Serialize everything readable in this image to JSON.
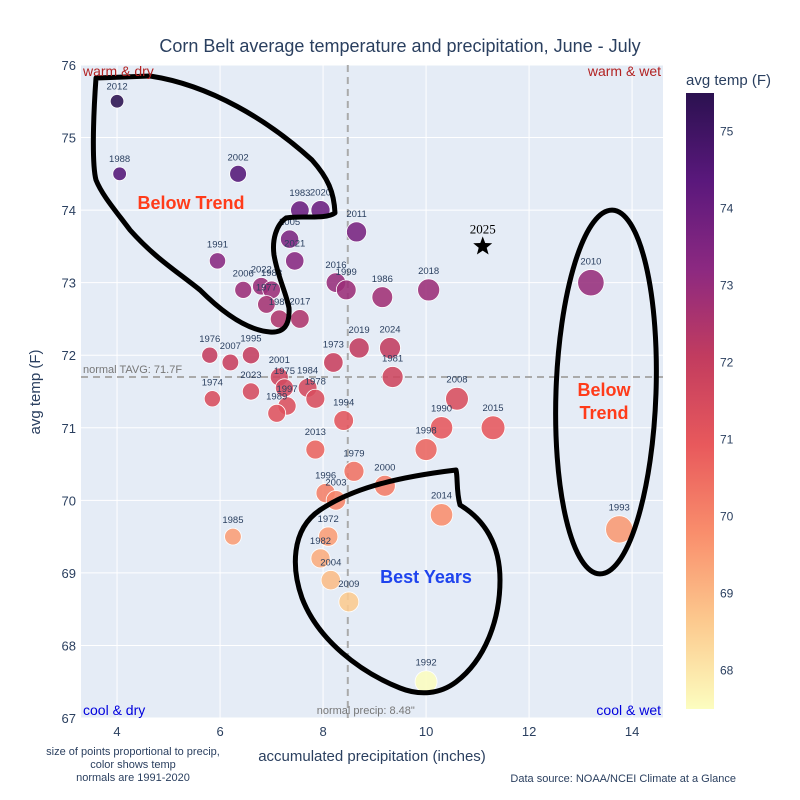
{
  "chart_data": {
    "type": "scatter",
    "title": "Corn Belt average temperature and precipitation, June - July",
    "xlabel": "accumulated precipitation (inches)",
    "ylabel": "avg temp (F)",
    "xlim": [
      3.3,
      14.6
    ],
    "ylim": [
      67,
      76
    ],
    "xticks": [
      4,
      6,
      8,
      10,
      12,
      14
    ],
    "yticks": [
      67,
      68,
      69,
      70,
      71,
      72,
      73,
      74,
      75,
      76
    ],
    "grid": true,
    "colorbar": {
      "title": "avg temp (F)",
      "range": [
        67.5,
        75.5
      ],
      "ticks": [
        68,
        69,
        70,
        71,
        72,
        73,
        74,
        75
      ],
      "colorscale": [
        "#fcfdbf",
        "#fcc98e",
        "#f98e6c",
        "#e8595c",
        "#c23c5f",
        "#8c2981",
        "#5a187c",
        "#2b1150"
      ]
    },
    "points": [
      {
        "year": "2012",
        "precip": 4.0,
        "temp": 75.5
      },
      {
        "year": "1988",
        "precip": 4.05,
        "temp": 74.5
      },
      {
        "year": "2002",
        "precip": 6.35,
        "temp": 74.5
      },
      {
        "year": "1983",
        "precip": 7.55,
        "temp": 74.0
      },
      {
        "year": "2020",
        "precip": 7.95,
        "temp": 74.0
      },
      {
        "year": "2011",
        "precip": 8.65,
        "temp": 73.7
      },
      {
        "year": "2025",
        "precip": 11.1,
        "temp": 73.5,
        "marker": "star"
      },
      {
        "year": "2005",
        "precip": 7.35,
        "temp": 73.6
      },
      {
        "year": "2021",
        "precip": 7.45,
        "temp": 73.3
      },
      {
        "year": "1991",
        "precip": 5.95,
        "temp": 73.3
      },
      {
        "year": "2016",
        "precip": 8.25,
        "temp": 73.0
      },
      {
        "year": "1999",
        "precip": 8.45,
        "temp": 72.9
      },
      {
        "year": "1986",
        "precip": 9.15,
        "temp": 72.8
      },
      {
        "year": "2018",
        "precip": 10.05,
        "temp": 72.9
      },
      {
        "year": "2010",
        "precip": 13.2,
        "temp": 73.0
      },
      {
        "year": "2022",
        "precip": 6.8,
        "temp": 72.95
      },
      {
        "year": "2006",
        "precip": 6.45,
        "temp": 72.9
      },
      {
        "year": "1983",
        "precip": 7.0,
        "temp": 72.9
      },
      {
        "year": "1977",
        "precip": 6.9,
        "temp": 72.7
      },
      {
        "year": "1980",
        "precip": 7.15,
        "temp": 72.5
      },
      {
        "year": "2017",
        "precip": 7.55,
        "temp": 72.5
      },
      {
        "year": "1976",
        "precip": 5.8,
        "temp": 72.0
      },
      {
        "year": "2007",
        "precip": 6.2,
        "temp": 71.9
      },
      {
        "year": "1995",
        "precip": 6.6,
        "temp": 72.0
      },
      {
        "year": "1973",
        "precip": 8.2,
        "temp": 71.9
      },
      {
        "year": "2019",
        "precip": 8.7,
        "temp": 72.1
      },
      {
        "year": "2024",
        "precip": 9.3,
        "temp": 72.1
      },
      {
        "year": "1981",
        "precip": 9.35,
        "temp": 71.7
      },
      {
        "year": "2001",
        "precip": 7.15,
        "temp": 71.7
      },
      {
        "year": "1975",
        "precip": 7.25,
        "temp": 71.55
      },
      {
        "year": "1974",
        "precip": 5.85,
        "temp": 71.4
      },
      {
        "year": "2023",
        "precip": 6.6,
        "temp": 71.5
      },
      {
        "year": "1984",
        "precip": 7.7,
        "temp": 71.55
      },
      {
        "year": "1997",
        "precip": 7.3,
        "temp": 71.3
      },
      {
        "year": "1989",
        "precip": 7.1,
        "temp": 71.2
      },
      {
        "year": "1978",
        "precip": 7.85,
        "temp": 71.4
      },
      {
        "year": "1994",
        "precip": 8.4,
        "temp": 71.1
      },
      {
        "year": "2008",
        "precip": 10.6,
        "temp": 71.4
      },
      {
        "year": "1990",
        "precip": 10.3,
        "temp": 71.0
      },
      {
        "year": "2015",
        "precip": 11.3,
        "temp": 71.0
      },
      {
        "year": "2013",
        "precip": 7.85,
        "temp": 70.7
      },
      {
        "year": "1998",
        "precip": 10.0,
        "temp": 70.7
      },
      {
        "year": "1979",
        "precip": 8.6,
        "temp": 70.4
      },
      {
        "year": "1996",
        "precip": 8.05,
        "temp": 70.1
      },
      {
        "year": "2003",
        "precip": 8.25,
        "temp": 70.0
      },
      {
        "year": "2000",
        "precip": 9.2,
        "temp": 70.2
      },
      {
        "year": "2014",
        "precip": 10.3,
        "temp": 69.8
      },
      {
        "year": "1993",
        "precip": 13.75,
        "temp": 69.6
      },
      {
        "year": "1985",
        "precip": 6.25,
        "temp": 69.5
      },
      {
        "year": "1972",
        "precip": 8.1,
        "temp": 69.5
      },
      {
        "year": "1982",
        "precip": 7.95,
        "temp": 69.2
      },
      {
        "year": "2004",
        "precip": 8.15,
        "temp": 68.9
      },
      {
        "year": "2009",
        "precip": 8.5,
        "temp": 68.6
      },
      {
        "year": "1992",
        "precip": 10.0,
        "temp": 67.5
      }
    ],
    "reference_lines": {
      "normal_temp": 71.7,
      "normal_temp_label": "normal TAVG: 71.7F",
      "normal_precip": 8.48,
      "normal_precip_label": "normal precip: 8.48\""
    },
    "quadrant_labels": {
      "top_left": "warm & dry",
      "top_right": "warm & wet",
      "bottom_left": "cool & dry",
      "bottom_right": "cool & wet"
    },
    "annotations": {
      "below_trend_left": "Below Trend",
      "below_trend_right_line1": "Below",
      "below_trend_right_line2": "Trend",
      "best_years": "Best Years"
    },
    "footnote_lines": [
      "size of points proportional to precip,",
      "color shows temp",
      "normals are 1991-2020"
    ],
    "source": "Data source: NOAA/NCEI Climate at a Glance"
  }
}
